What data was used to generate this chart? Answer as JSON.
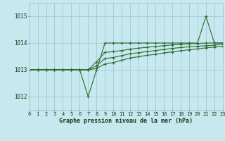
{
  "bg_color": "#c8e8f0",
  "grid_color": "#a0c8d8",
  "line_color": "#2d6a2d",
  "title": "Graphe pression niveau de la mer (hPa)",
  "xlim": [
    0,
    23
  ],
  "ylim": [
    1011.5,
    1015.5
  ],
  "yticks": [
    1012,
    1013,
    1014,
    1015
  ],
  "xticks": [
    0,
    1,
    2,
    3,
    4,
    5,
    6,
    7,
    8,
    9,
    10,
    11,
    12,
    13,
    14,
    15,
    16,
    17,
    18,
    19,
    20,
    21,
    22,
    23
  ],
  "series1_y": [
    1013,
    1013,
    1013,
    1013,
    1013,
    1013,
    1013,
    1012,
    1013,
    1014,
    1014,
    1014,
    1014,
    1014,
    1014,
    1014,
    1014,
    1014,
    1014,
    1014,
    1014,
    1015,
    1014,
    1014
  ],
  "series2_y": [
    1013,
    1013,
    1013,
    1013,
    1013,
    1013,
    1013,
    1013,
    1013.3,
    1013.65,
    1013.68,
    1013.72,
    1013.77,
    1013.81,
    1013.84,
    1013.87,
    1013.9,
    1013.93,
    1013.95,
    1013.97,
    1013.98,
    1014.0,
    1014.0,
    1014.0
  ],
  "series3_y": [
    1013,
    1013,
    1013,
    1013,
    1013,
    1013,
    1013,
    1013,
    1013.15,
    1013.42,
    1013.46,
    1013.53,
    1013.6,
    1013.64,
    1013.68,
    1013.72,
    1013.76,
    1013.8,
    1013.83,
    1013.86,
    1013.88,
    1013.9,
    1013.92,
    1013.95
  ],
  "series4_y": [
    1013,
    1013,
    1013,
    1013,
    1013,
    1013,
    1013,
    1013,
    1013.05,
    1013.22,
    1013.27,
    1013.36,
    1013.44,
    1013.49,
    1013.54,
    1013.58,
    1013.63,
    1013.67,
    1013.71,
    1013.75,
    1013.78,
    1013.82,
    1013.85,
    1013.88
  ]
}
